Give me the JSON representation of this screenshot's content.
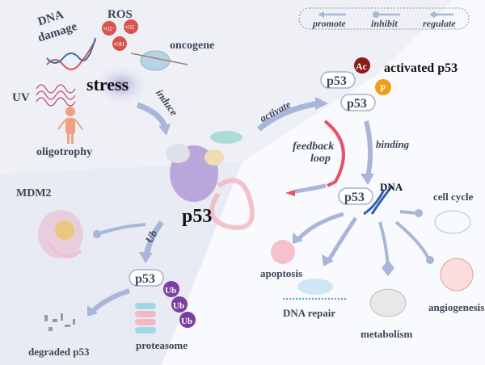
{
  "stress": {
    "dna_damage": [
      "DNA",
      "damage"
    ],
    "ros": "ROS",
    "ros_species": [
      "•O2⁻",
      "•O2",
      "•OH"
    ],
    "oncogene": "oncogene",
    "uv": "UV",
    "stress": "stress",
    "oligotrophy": "oligotrophy",
    "induce": "induce"
  },
  "legend": {
    "promote": "promote",
    "inhibit": "inhibit",
    "regulate": "regulate"
  },
  "center": {
    "p53": "p53"
  },
  "activation": {
    "activate": "activate",
    "p53_a": "p53",
    "p53_b": "p53",
    "ac": "Ac",
    "p": "P",
    "activated_p53": "activated p53",
    "feedback": [
      "feedback",
      "loop"
    ],
    "binding": "binding",
    "p53_dna": "p53",
    "dna": "DNA"
  },
  "outcomes": {
    "cell_cycle": "cell cycle",
    "apoptosis": "apoptosis",
    "dna_repair": "DNA repair",
    "metabolism": "metabolism",
    "angiogenesis": "angiogenesis"
  },
  "degradation": {
    "mdm2": "MDM2",
    "ub_arrow": "Ub",
    "p53": "p53",
    "ub": [
      "Ub",
      "Ub",
      "Ub"
    ],
    "degraded": "degraded p53",
    "proteasome": "proteasome"
  },
  "colors": {
    "arrow": "#a9b5d9",
    "ros": "#d9534f",
    "ac": "#8b1a1a",
    "p": "#f39c12",
    "ub": "#7b3fa0",
    "feedback": "#e8506a",
    "person": "#f0a080"
  }
}
